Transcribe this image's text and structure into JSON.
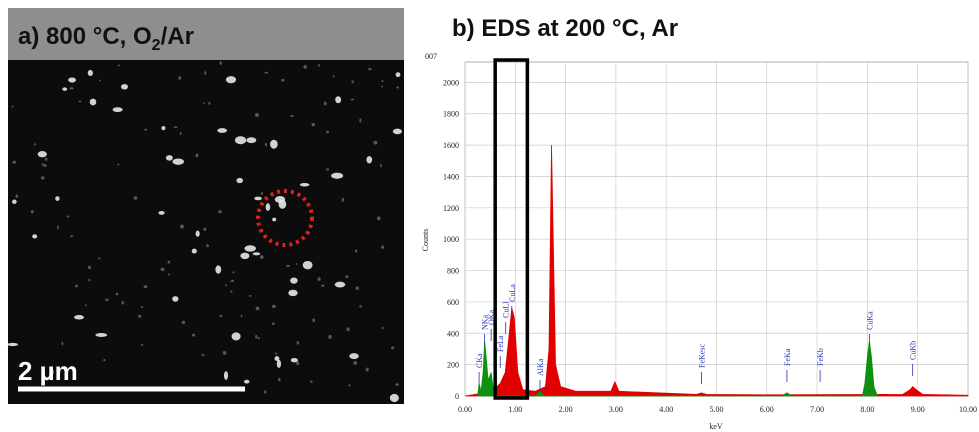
{
  "panel_a": {
    "title_main": "a) 800 °C, O",
    "title_sub": "2",
    "title_tail": "/Ar",
    "scale_label": "2 µm"
  },
  "chart_data": {
    "type": "area",
    "title": "b) EDS at 200 °C, Ar",
    "corner_label": "007",
    "y_label": "Counts",
    "x_label": "keV",
    "xlim": [
      0,
      10
    ],
    "ylim": [
      0,
      2130
    ],
    "xticks": [
      {
        "value": 0,
        "label": "0.00"
      },
      {
        "value": 1,
        "label": "1.00"
      },
      {
        "value": 2,
        "label": "2.00"
      },
      {
        "value": 3,
        "label": "3.00"
      },
      {
        "value": 4,
        "label": "4.00"
      },
      {
        "value": 5,
        "label": "5.00"
      },
      {
        "value": 6,
        "label": "6.00"
      },
      {
        "value": 7,
        "label": "7.00"
      },
      {
        "value": 8,
        "label": "8.00"
      },
      {
        "value": 9,
        "label": "9.00"
      },
      {
        "value": 10,
        "label": "10.00"
      }
    ],
    "yticks": [
      0,
      200,
      400,
      600,
      800,
      1000,
      1200,
      1400,
      1600,
      1800,
      2000
    ],
    "grid": true,
    "series": [
      {
        "color": "#e00000",
        "x": [
          0,
          0.2,
          0.45,
          0.5,
          0.6,
          0.7,
          0.8,
          0.88,
          0.93,
          0.98,
          1.05,
          1.15,
          1.4,
          1.6,
          1.67,
          1.72,
          1.76,
          1.8,
          1.9,
          2.2,
          2.9,
          2.98,
          3.06,
          4.6,
          4.7,
          4.8,
          6,
          8.7,
          8.85,
          8.9,
          8.97,
          9.1,
          10
        ],
        "values": [
          0,
          10,
          20,
          30,
          50,
          80,
          150,
          400,
          560,
          500,
          150,
          40,
          30,
          60,
          300,
          1600,
          900,
          200,
          60,
          30,
          30,
          90,
          30,
          10,
          20,
          10,
          8,
          10,
          40,
          60,
          40,
          10,
          5
        ]
      },
      {
        "color": "#109010",
        "x": [
          0.25,
          0.28,
          0.32,
          0.36,
          0.39,
          0.42,
          0.46,
          0.52,
          0.56,
          0.6,
          1.4,
          1.49,
          1.58,
          6.3,
          6.4,
          6.5,
          7.9,
          7.95,
          8,
          8.04,
          8.08,
          8.13,
          8.2
        ],
        "values": [
          0,
          80,
          30,
          150,
          350,
          250,
          100,
          150,
          50,
          0,
          0,
          30,
          0,
          0,
          20,
          0,
          0,
          80,
          250,
          350,
          250,
          60,
          0
        ]
      }
    ],
    "peaks": [
      {
        "label": "CKa",
        "x": 0.28
      },
      {
        "label": "NKa",
        "x": 0.39
      },
      {
        "label": "OKa",
        "x": 0.52
      },
      {
        "label": "FeLa",
        "x": 0.7
      },
      {
        "label": "CuLl",
        "x": 0.81
      },
      {
        "label": "CuLa",
        "x": 0.93
      },
      {
        "label": "AlKa",
        "x": 1.49
      },
      {
        "label": "FeKesc",
        "x": 4.7
      },
      {
        "label": "FeKa",
        "x": 6.4
      },
      {
        "label": "FeKb",
        "x": 7.06
      },
      {
        "label": "CuKa",
        "x": 8.04
      },
      {
        "label": "CuKb",
        "x": 8.9
      }
    ]
  }
}
